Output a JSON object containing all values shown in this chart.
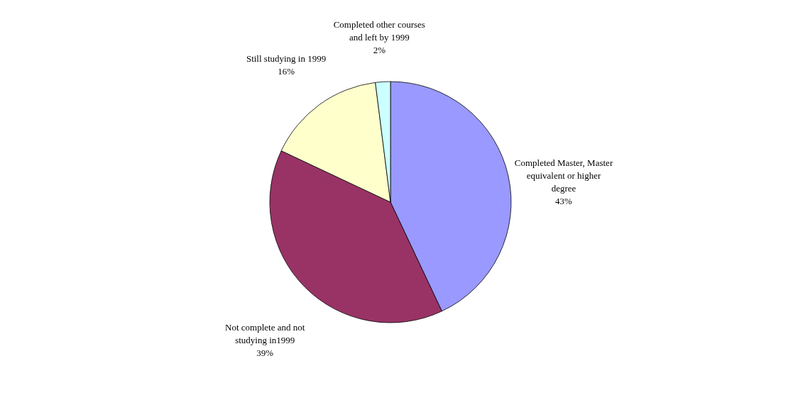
{
  "chart_data": {
    "type": "pie",
    "categories": [
      "Completed Master, Master equivalent or higher degree",
      "Not complete and not studying in1999",
      "Still studying in 1999",
      "Completed other courses and left by 1999"
    ],
    "values": [
      43,
      39,
      16,
      2
    ],
    "value_labels": [
      "43%",
      "39%",
      "16%",
      "2%"
    ],
    "colors": [
      "#9999ff",
      "#993366",
      "#ffffcc",
      "#ccffff"
    ],
    "legend": false
  }
}
